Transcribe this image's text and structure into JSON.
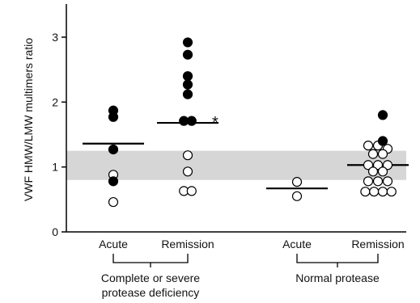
{
  "chart_data": {
    "type": "scatter",
    "ylabel": "VWF HMW/LMW multimers ratio",
    "ylim": [
      0,
      3.5
    ],
    "yticks": [
      "0",
      "1",
      "2",
      "3"
    ],
    "reference_band": [
      0.8,
      1.25
    ],
    "categories": [
      "Acute",
      "Remission",
      "Acute",
      "Remission"
    ],
    "groups": [
      {
        "label": "Complete or severe\nprotease deficiency",
        "categories": [
          0,
          1
        ]
      },
      {
        "label": "Normal protease",
        "categories": [
          2,
          3
        ]
      }
    ],
    "markers": {
      "filled": "#000000",
      "open": "#ffffff"
    },
    "series": [
      {
        "category": "Acute",
        "mean": 1.36,
        "filled": [
          {
            "y": 1.87,
            "dx": 0
          },
          {
            "y": 1.77,
            "dx": 0
          },
          {
            "y": 1.27,
            "dx": 0
          },
          {
            "y": 0.78,
            "dx": 0
          }
        ],
        "open": [
          {
            "y": 0.88,
            "dx": 0
          },
          {
            "y": 0.46,
            "dx": 0
          }
        ]
      },
      {
        "category": "Remission",
        "mean": 1.68,
        "filled": [
          {
            "y": 2.92,
            "dx": 0
          },
          {
            "y": 2.73,
            "dx": 0
          },
          {
            "y": 2.4,
            "dx": 0
          },
          {
            "y": 2.27,
            "dx": 0
          },
          {
            "y": 2.12,
            "dx": 0
          },
          {
            "y": 1.71,
            "dx": -0.4
          },
          {
            "y": 1.71,
            "dx": 0.4
          }
        ],
        "open": [
          {
            "y": 1.18,
            "dx": 0
          },
          {
            "y": 0.93,
            "dx": 0
          },
          {
            "y": 0.63,
            "dx": -0.4
          },
          {
            "y": 0.63,
            "dx": 0.4
          }
        ]
      },
      {
        "category": "Acute",
        "mean": 0.67,
        "filled": [],
        "open": [
          {
            "y": 0.77,
            "dx": 0
          },
          {
            "y": 0.55,
            "dx": 0
          }
        ]
      },
      {
        "category": "Remission",
        "mean": 1.03,
        "filled": [
          {
            "y": 1.8,
            "dx": 0.5
          },
          {
            "y": 1.4,
            "dx": 0.5
          }
        ],
        "open": [
          {
            "y": 1.33,
            "dx": -1
          },
          {
            "y": 1.33,
            "dx": 0
          },
          {
            "y": 1.28,
            "dx": 1
          },
          {
            "y": 1.2,
            "dx": -0.5
          },
          {
            "y": 1.2,
            "dx": 0.5
          },
          {
            "y": 1.03,
            "dx": -1
          },
          {
            "y": 1.03,
            "dx": 0
          },
          {
            "y": 1.03,
            "dx": 1
          },
          {
            "y": 0.93,
            "dx": -0.5
          },
          {
            "y": 0.93,
            "dx": 0.5
          },
          {
            "y": 0.78,
            "dx": -1
          },
          {
            "y": 0.78,
            "dx": 0
          },
          {
            "y": 0.78,
            "dx": 1
          },
          {
            "y": 0.62,
            "dx": -1.3
          },
          {
            "y": 0.62,
            "dx": -0.4
          },
          {
            "y": 0.62,
            "dx": 0.5
          },
          {
            "y": 0.62,
            "dx": 1.4
          }
        ]
      }
    ],
    "annotations": [
      {
        "text": "*",
        "category_index": 1
      }
    ]
  }
}
